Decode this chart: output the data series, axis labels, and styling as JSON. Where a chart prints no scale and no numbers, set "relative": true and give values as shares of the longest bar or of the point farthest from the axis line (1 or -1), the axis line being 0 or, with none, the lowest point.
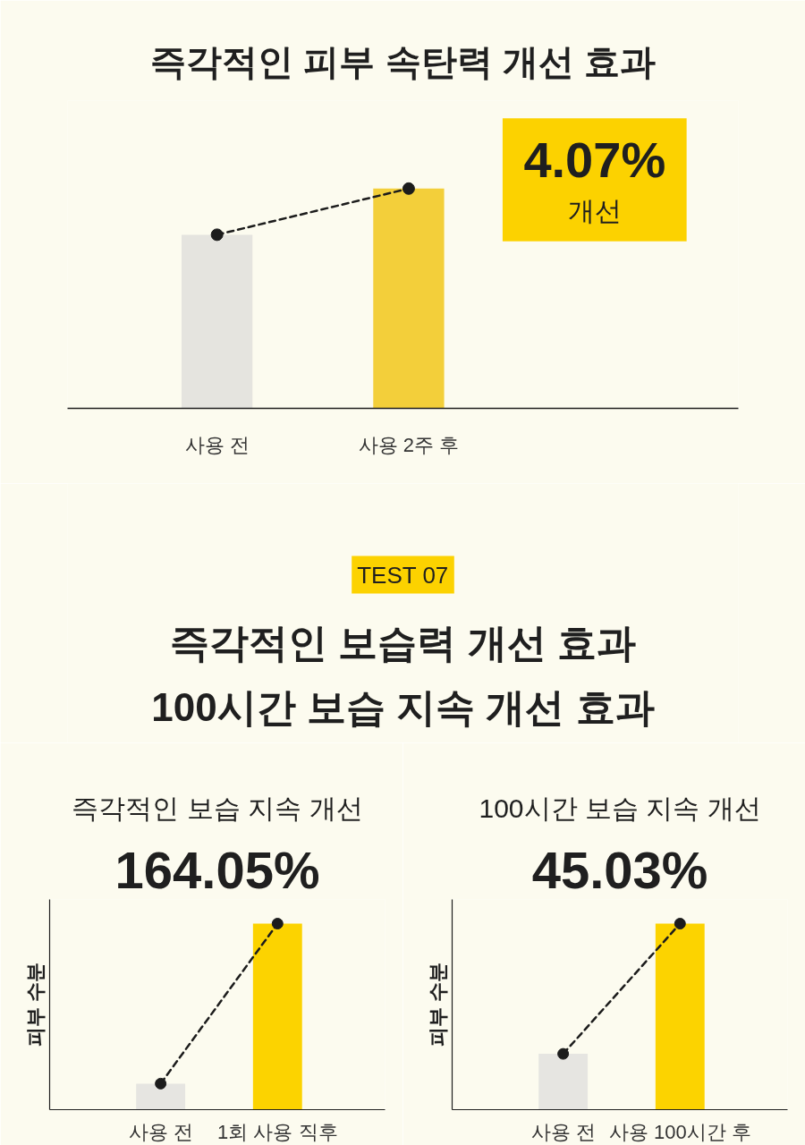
{
  "chart_data": [
    {
      "type": "bar",
      "title": "즉각적인 피부 속탄력 개선 효과",
      "categories": [
        "사용 전",
        "사용 2주 후"
      ],
      "relative": true,
      "marker": "circle",
      "line_style": "dashed",
      "series": [
        {
          "type": "bar",
          "colors": [
            "#e5e4df",
            "#f3cf3a"
          ],
          "values": [
            0.79,
            1
          ]
        },
        {
          "type": "line",
          "color": "#1c1c1c",
          "values": [
            0.79,
            1
          ]
        }
      ],
      "annotations": [
        "4.07% 개선"
      ]
    },
    {
      "type": "other",
      "annotations": [
        "TEST 07"
      ],
      "title": "즉각적인 보습력 개선 효과",
      "subtitle": "100시간 보습 지속 개선 효과"
    },
    {
      "type": "bar",
      "title": "즉각적인 보습 지속 개선",
      "subtitle": "164.05%",
      "ylabel": "피부 수분",
      "categories": [
        "사용 전",
        "1회 사용 직후"
      ],
      "relative": true,
      "marker": "circle",
      "line_style": "dashed",
      "series": [
        {
          "type": "bar",
          "colors": [
            "#e6e5e1",
            "#fcd300"
          ],
          "values": [
            0.14,
            1
          ]
        },
        {
          "type": "line",
          "color": "#1c1c1c",
          "values": [
            0.14,
            1
          ]
        }
      ]
    },
    {
      "type": "bar",
      "title": "100시간 보습 지속 개선",
      "subtitle": "45.03%",
      "ylabel": "피부 수분",
      "categories": [
        "사용 전",
        "사용 100시간 후"
      ],
      "relative": true,
      "marker": "circle",
      "line_style": "dashed",
      "series": [
        {
          "type": "bar",
          "colors": [
            "#e6e5e1",
            "#fcd300"
          ],
          "values": [
            0.3,
            1
          ]
        },
        {
          "type": "line",
          "color": "#1c1c1c",
          "values": [
            0.3,
            1
          ]
        }
      ]
    }
  ]
}
